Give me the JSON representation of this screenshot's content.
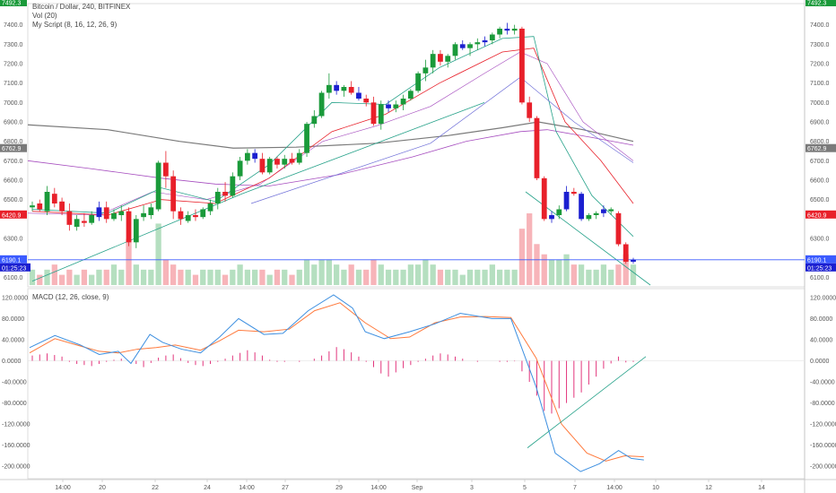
{
  "chart": {
    "symbol_title": "Bitcoin / Dollar, 240, BITFINEX",
    "volume_title": "Vol (20)",
    "script_title": "My Script (8, 16, 12, 26, 9)",
    "macd_title": "MACD (12, 26, close, 9)",
    "price_axis_labels": [
      "7400.0",
      "7300.0",
      "7200.0",
      "7100.0",
      "7000.0",
      "6900.0",
      "6800.0",
      "6700.0",
      "6600.0",
      "6500.0",
      "6300.0",
      "6100.0"
    ],
    "macd_axis_labels": [
      "120.0000",
      "80.0000",
      "40.0000",
      "0.0000",
      "-40.0000",
      "-80.0000",
      "-120.0000",
      "-160.0000",
      "-200.0000"
    ],
    "time_axis_labels": [
      "14:00",
      "20",
      "22",
      "24",
      "14:00",
      "27",
      "29",
      "14:00",
      "Sep",
      "3",
      "5",
      "7",
      "14:00",
      "10",
      "12",
      "14"
    ],
    "tags": {
      "top_left": "7492.3",
      "top_right": "7492.3",
      "ma_left": "6762.9",
      "ma_right": "6762.9",
      "last_left": "6420.9",
      "last_right": "6420.9",
      "line_left": "6190.1",
      "line_right": "6190.1",
      "countdown_left": "01:25:23",
      "countdown_right": "01:25:23"
    },
    "colors": {
      "up": "#1a9a3a",
      "down": "#e8202a",
      "reversal": "#1b1fd0",
      "horizontal_line": "#3b5bff",
      "ma_gray": "#7a7a7a",
      "ma_purple": "#a64dbf",
      "trend_teal": "#27a28a",
      "macd_line": "#3d8fe0",
      "signal_line": "#ff7a3d",
      "histogram": "#e2357c"
    }
  },
  "chart_data": {
    "type": "candlestick",
    "title": "Bitcoin / Dollar, 240, BITFINEX",
    "price_range": [
      6060,
      7500
    ],
    "candles": [
      [
        6460,
        6490,
        6440,
        6470,
        "u"
      ],
      [
        6480,
        6500,
        6440,
        6450,
        "d"
      ],
      [
        6440,
        6570,
        6420,
        6540,
        "u"
      ],
      [
        6530,
        6560,
        6460,
        6480,
        "d"
      ],
      [
        6490,
        6510,
        6420,
        6440,
        "d"
      ],
      [
        6440,
        6480,
        6340,
        6370,
        "d"
      ],
      [
        6360,
        6420,
        6340,
        6400,
        "u"
      ],
      [
        6390,
        6430,
        6360,
        6380,
        "d"
      ],
      [
        6380,
        6440,
        6370,
        6420,
        "u"
      ],
      [
        6410,
        6490,
        6390,
        6460,
        "r"
      ],
      [
        6460,
        6490,
        6380,
        6400,
        "d"
      ],
      [
        6400,
        6450,
        6390,
        6430,
        "u"
      ],
      [
        6420,
        6470,
        6390,
        6440,
        "u"
      ],
      [
        6440,
        6460,
        6260,
        6280,
        "d"
      ],
      [
        6280,
        6420,
        6250,
        6400,
        "u"
      ],
      [
        6410,
        6470,
        6390,
        6430,
        "u"
      ],
      [
        6420,
        6480,
        6400,
        6460,
        "u"
      ],
      [
        6450,
        6700,
        6440,
        6690,
        "u"
      ],
      [
        6690,
        6750,
        6560,
        6620,
        "d"
      ],
      [
        6620,
        6650,
        6400,
        6440,
        "d"
      ],
      [
        6440,
        6460,
        6370,
        6400,
        "d"
      ],
      [
        6390,
        6440,
        6380,
        6420,
        "u"
      ],
      [
        6420,
        6450,
        6390,
        6410,
        "d"
      ],
      [
        6410,
        6460,
        6400,
        6450,
        "u"
      ],
      [
        6440,
        6500,
        6420,
        6480,
        "u"
      ],
      [
        6480,
        6560,
        6450,
        6540,
        "u"
      ],
      [
        6540,
        6590,
        6490,
        6520,
        "d"
      ],
      [
        6520,
        6640,
        6510,
        6620,
        "u"
      ],
      [
        6620,
        6720,
        6600,
        6700,
        "u"
      ],
      [
        6700,
        6760,
        6680,
        6740,
        "u"
      ],
      [
        6740,
        6760,
        6690,
        6710,
        "r"
      ],
      [
        6710,
        6740,
        6630,
        6640,
        "d"
      ],
      [
        6640,
        6720,
        6630,
        6710,
        "u"
      ],
      [
        6710,
        6720,
        6660,
        6680,
        "d"
      ],
      [
        6680,
        6730,
        6660,
        6710,
        "u"
      ],
      [
        6710,
        6740,
        6680,
        6690,
        "d"
      ],
      [
        6690,
        6760,
        6680,
        6740,
        "u"
      ],
      [
        6740,
        6900,
        6720,
        6890,
        "u"
      ],
      [
        6890,
        6960,
        6870,
        6930,
        "u"
      ],
      [
        6930,
        7060,
        6920,
        7050,
        "u"
      ],
      [
        7050,
        7150,
        7020,
        7090,
        "u"
      ],
      [
        7090,
        7110,
        7040,
        7060,
        "r"
      ],
      [
        7060,
        7090,
        7030,
        7080,
        "u"
      ],
      [
        7080,
        7110,
        7040,
        7050,
        "d"
      ],
      [
        7050,
        7080,
        7010,
        7020,
        "r"
      ],
      [
        7020,
        7040,
        6980,
        7000,
        "d"
      ],
      [
        7000,
        7030,
        6880,
        6890,
        "d"
      ],
      [
        6890,
        7010,
        6860,
        6990,
        "u"
      ],
      [
        6990,
        7010,
        6950,
        6970,
        "r"
      ],
      [
        6970,
        7010,
        6950,
        6990,
        "u"
      ],
      [
        6990,
        7040,
        6960,
        7020,
        "u"
      ],
      [
        7020,
        7070,
        7010,
        7060,
        "u"
      ],
      [
        7060,
        7160,
        7050,
        7150,
        "u"
      ],
      [
        7150,
        7220,
        7110,
        7180,
        "u"
      ],
      [
        7180,
        7270,
        7150,
        7250,
        "u"
      ],
      [
        7250,
        7270,
        7190,
        7210,
        "d"
      ],
      [
        7210,
        7250,
        7180,
        7240,
        "u"
      ],
      [
        7240,
        7310,
        7220,
        7300,
        "u"
      ],
      [
        7300,
        7320,
        7270,
        7280,
        "r"
      ],
      [
        7280,
        7310,
        7240,
        7300,
        "u"
      ],
      [
        7300,
        7330,
        7270,
        7310,
        "u"
      ],
      [
        7310,
        7340,
        7290,
        7320,
        "r"
      ],
      [
        7320,
        7360,
        7300,
        7350,
        "u"
      ],
      [
        7350,
        7390,
        7330,
        7380,
        "u"
      ],
      [
        7380,
        7410,
        7350,
        7370,
        "r"
      ],
      [
        7370,
        7400,
        7350,
        7380,
        "u"
      ],
      [
        7380,
        7390,
        6990,
        7000,
        "d"
      ],
      [
        7000,
        7030,
        6900,
        6920,
        "d"
      ],
      [
        6920,
        6930,
        6600,
        6610,
        "d"
      ],
      [
        6610,
        6620,
        6390,
        6400,
        "d"
      ],
      [
        6400,
        6440,
        6380,
        6420,
        "r"
      ],
      [
        6420,
        6470,
        6400,
        6450,
        "u"
      ],
      [
        6450,
        6570,
        6440,
        6540,
        "r"
      ],
      [
        6540,
        6560,
        6520,
        6530,
        "d"
      ],
      [
        6530,
        6540,
        6390,
        6400,
        "r"
      ],
      [
        6400,
        6430,
        6390,
        6420,
        "u"
      ],
      [
        6420,
        6440,
        6400,
        6430,
        "u"
      ],
      [
        6430,
        6470,
        6410,
        6450,
        "r"
      ],
      [
        6450,
        6460,
        6420,
        6440,
        "u"
      ],
      [
        6430,
        6440,
        6260,
        6270,
        "d"
      ],
      [
        6270,
        6280,
        6170,
        6180,
        "d"
      ],
      [
        6180,
        6200,
        6170,
        6190,
        "r"
      ]
    ],
    "volume": [
      3,
      2,
      3,
      4,
      2,
      3,
      2,
      3,
      2,
      3,
      3,
      4,
      3,
      9,
      4,
      3,
      3,
      12,
      5,
      4,
      3,
      3,
      2,
      3,
      3,
      3,
      2,
      3,
      4,
      3,
      3,
      3,
      2,
      3,
      3,
      2,
      3,
      5,
      4,
      5,
      5,
      4,
      3,
      4,
      3,
      3,
      5,
      4,
      3,
      3,
      3,
      4,
      4,
      5,
      4,
      3,
      3,
      3,
      2,
      3,
      3,
      3,
      4,
      3,
      3,
      3,
      11,
      14,
      8,
      6,
      5,
      5,
      6,
      4,
      4,
      3,
      3,
      4,
      3,
      4,
      6,
      4
    ],
    "macd": {
      "x_range": [
        0,
        1
      ],
      "y_range": [
        -220,
        130
      ],
      "macd_line": [
        [
          0,
          25
        ],
        [
          0.04,
          48
        ],
        [
          0.08,
          30
        ],
        [
          0.11,
          12
        ],
        [
          0.14,
          18
        ],
        [
          0.16,
          -5
        ],
        [
          0.19,
          50
        ],
        [
          0.21,
          35
        ],
        [
          0.24,
          22
        ],
        [
          0.27,
          15
        ],
        [
          0.3,
          45
        ],
        [
          0.33,
          80
        ],
        [
          0.37,
          50
        ],
        [
          0.4,
          52
        ],
        [
          0.44,
          95
        ],
        [
          0.48,
          125
        ],
        [
          0.51,
          100
        ],
        [
          0.53,
          55
        ],
        [
          0.56,
          42
        ],
        [
          0.6,
          55
        ],
        [
          0.64,
          70
        ],
        [
          0.68,
          90
        ],
        [
          0.73,
          80
        ],
        [
          0.76,
          80
        ],
        [
          0.8,
          -50
        ],
        [
          0.83,
          -175
        ],
        [
          0.87,
          -210
        ],
        [
          0.9,
          -195
        ],
        [
          0.93,
          -170
        ],
        [
          0.95,
          -185
        ],
        [
          0.97,
          -188
        ]
      ],
      "signal_line": [
        [
          0,
          15
        ],
        [
          0.04,
          42
        ],
        [
          0.08,
          28
        ],
        [
          0.11,
          18
        ],
        [
          0.14,
          15
        ],
        [
          0.17,
          22
        ],
        [
          0.2,
          25
        ],
        [
          0.23,
          30
        ],
        [
          0.27,
          20
        ],
        [
          0.3,
          38
        ],
        [
          0.33,
          58
        ],
        [
          0.37,
          55
        ],
        [
          0.41,
          60
        ],
        [
          0.45,
          95
        ],
        [
          0.49,
          110
        ],
        [
          0.53,
          72
        ],
        [
          0.57,
          42
        ],
        [
          0.6,
          45
        ],
        [
          0.64,
          72
        ],
        [
          0.68,
          83
        ],
        [
          0.72,
          84
        ],
        [
          0.76,
          82
        ],
        [
          0.8,
          5
        ],
        [
          0.84,
          -120
        ],
        [
          0.88,
          -175
        ],
        [
          0.91,
          -190
        ],
        [
          0.94,
          -180
        ],
        [
          0.97,
          -182
        ]
      ],
      "histogram": [
        10,
        12,
        14,
        11,
        8,
        -2,
        -6,
        -8,
        -10,
        -6,
        -2,
        2,
        4,
        0,
        -6,
        -12,
        -4,
        6,
        10,
        12,
        5,
        -4,
        -8,
        -10,
        -6,
        -2,
        4,
        10,
        15,
        20,
        16,
        10,
        2,
        -2,
        -2,
        0,
        -2,
        0,
        4,
        10,
        18,
        26,
        22,
        16,
        8,
        -2,
        -12,
        -24,
        -30,
        -22,
        -14,
        -8,
        -2,
        4,
        10,
        14,
        12,
        8,
        4,
        0,
        -2,
        0,
        0,
        -2,
        -2,
        -1,
        -20,
        -40,
        -66,
        -95,
        -100,
        -90,
        -80,
        -70,
        -60,
        -45,
        -30,
        -15,
        -5,
        8,
        -3,
        -2
      ],
      "ylim": [
        -220,
        130
      ]
    }
  }
}
